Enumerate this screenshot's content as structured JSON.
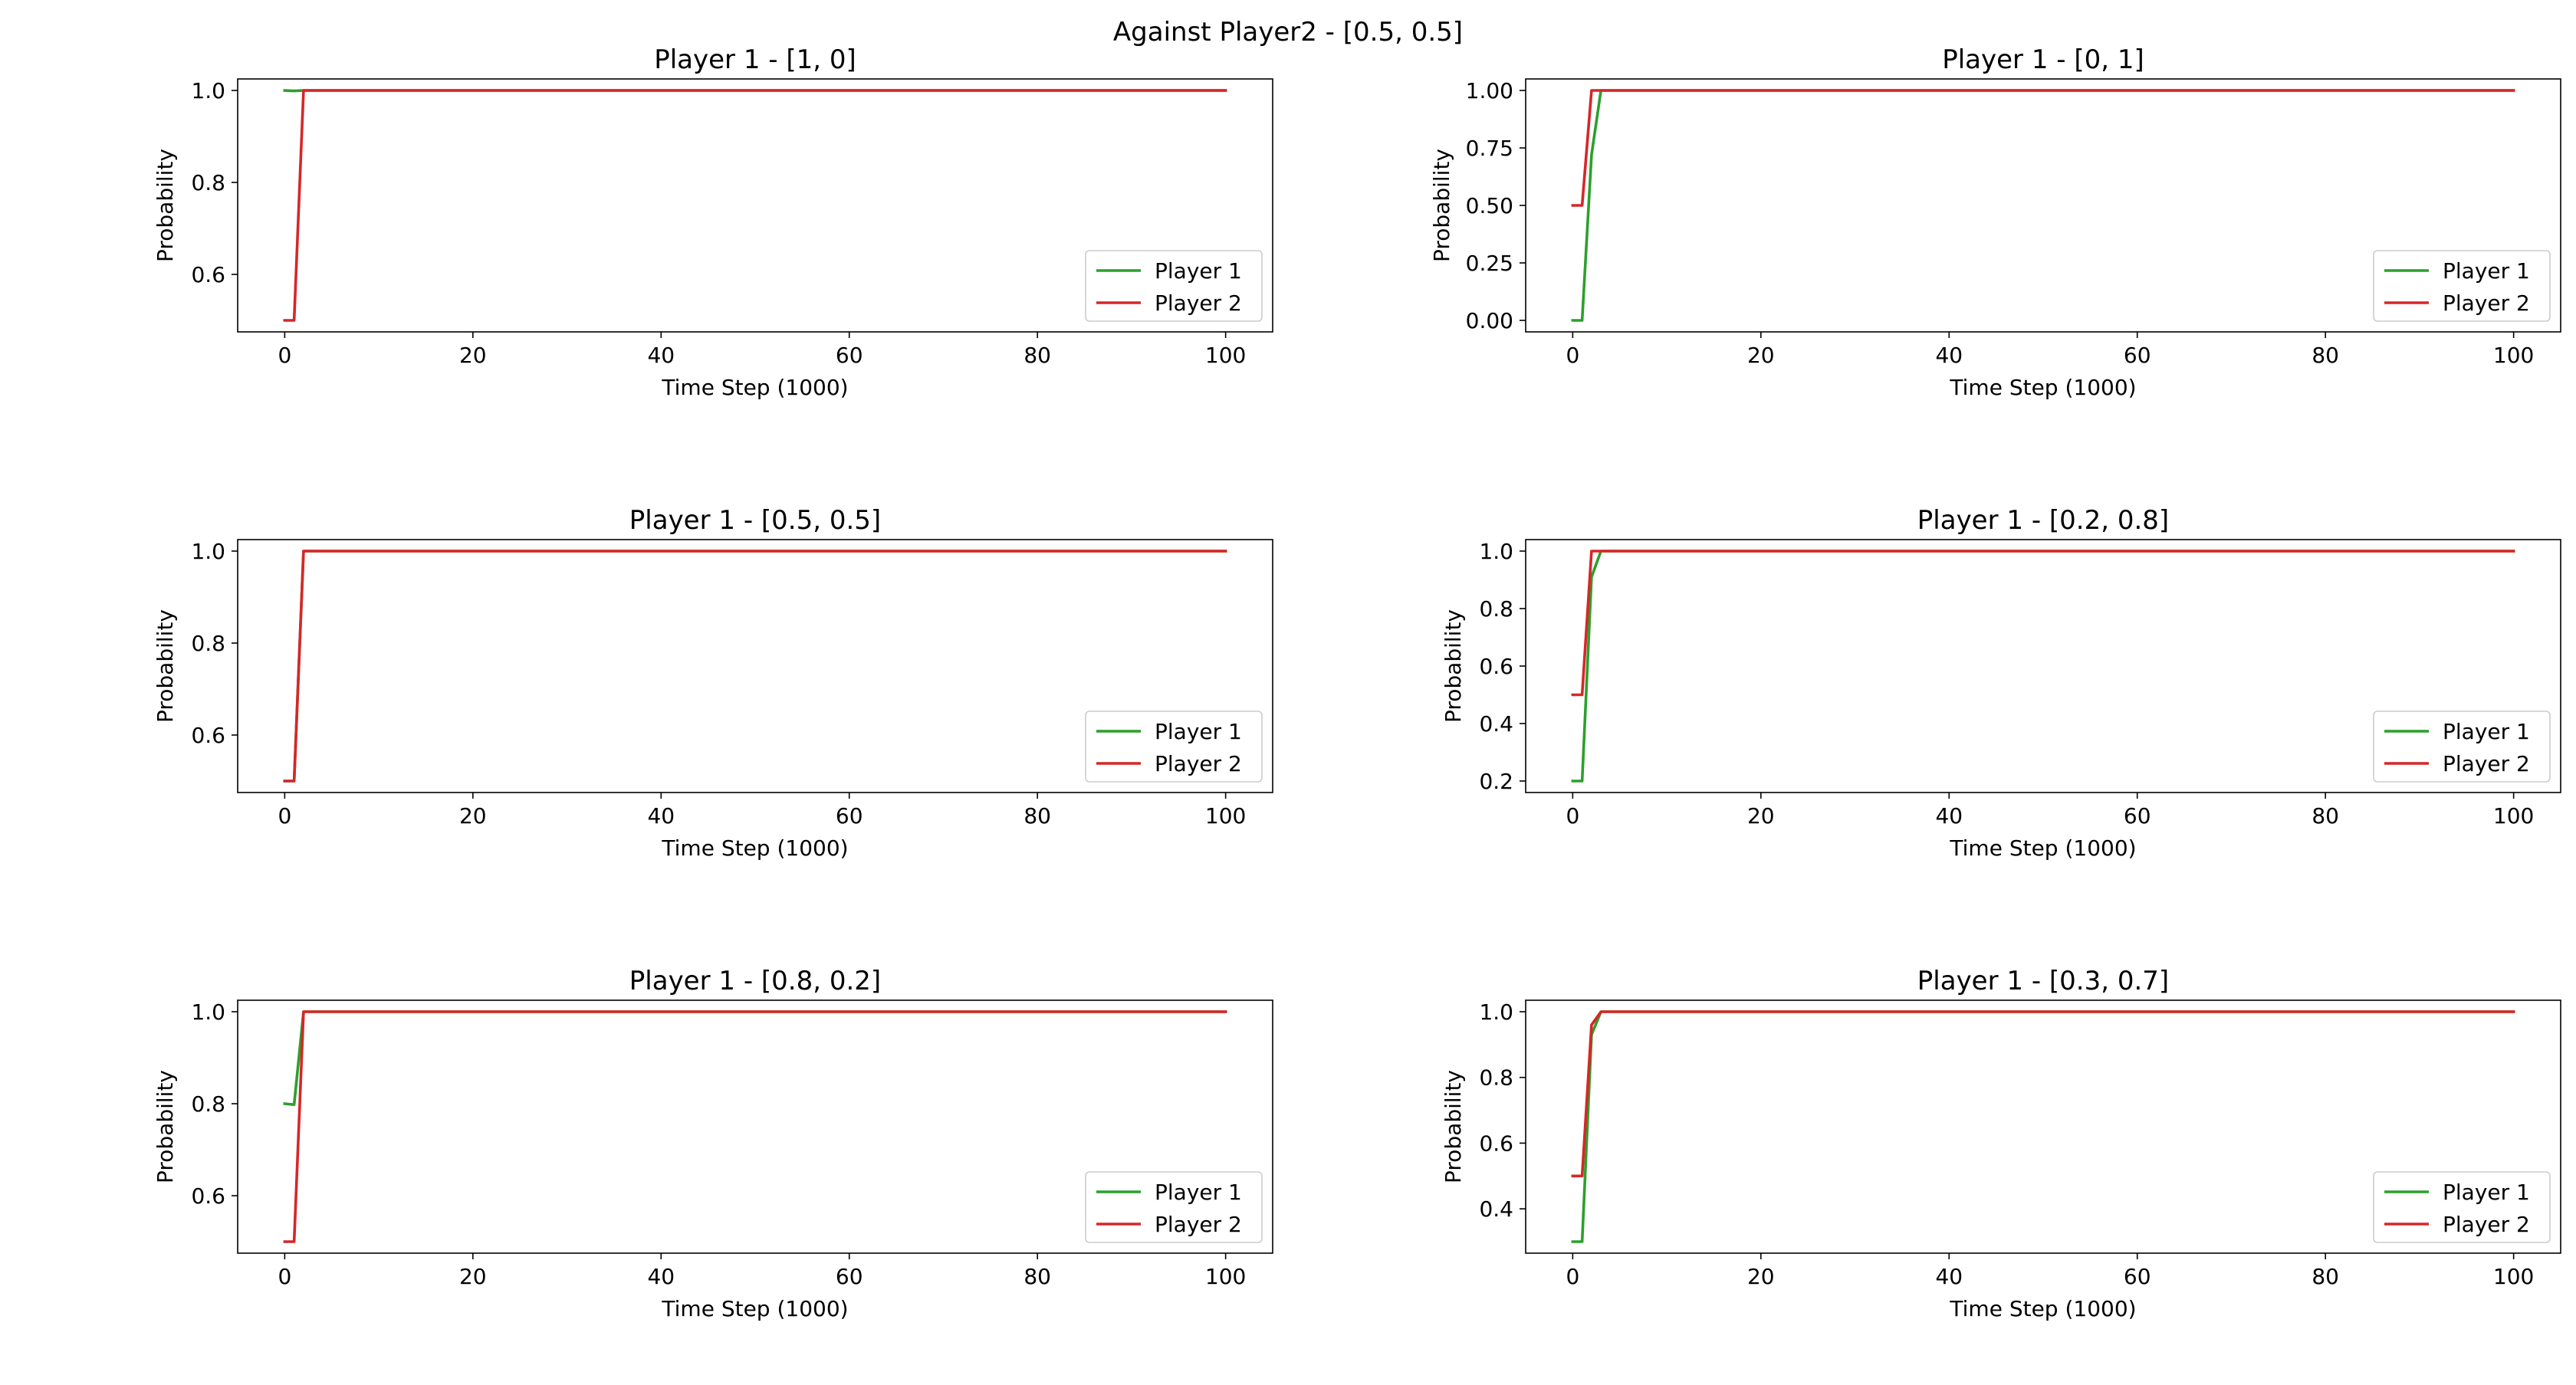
{
  "figure": {
    "suptitle": "Against Player2 - [0.5, 0.5]"
  },
  "chart_data": [
    {
      "type": "line",
      "title": "Player 1 - [1, 0]",
      "xlabel": "Time Step (1000)",
      "ylabel": "Probability",
      "xlim": [
        -5,
        105
      ],
      "ylim": [
        0.475,
        1.025
      ],
      "xticks": [
        0,
        20,
        40,
        60,
        80,
        100
      ],
      "yticks": [
        0.6,
        0.8,
        1.0
      ],
      "ytick_labels": [
        "0.6",
        "0.8",
        "1.0"
      ],
      "grid": false,
      "legend": "lower-right",
      "series": [
        {
          "name": "Player 1",
          "color": "#2ca02c",
          "x": [
            0,
            1,
            2,
            3,
            100
          ],
          "y": [
            1.0,
            0.999,
            1.0,
            1.0,
            1.0
          ]
        },
        {
          "name": "Player 2",
          "color": "#d62728",
          "x": [
            0,
            1,
            2,
            3,
            100
          ],
          "y": [
            0.5,
            0.5,
            1.0,
            1.0,
            1.0
          ]
        }
      ]
    },
    {
      "type": "line",
      "title": "Player 1 - [0, 1]",
      "xlabel": "Time Step (1000)",
      "ylabel": "Probability",
      "xlim": [
        -5,
        105
      ],
      "ylim": [
        -0.05,
        1.05
      ],
      "xticks": [
        0,
        20,
        40,
        60,
        80,
        100
      ],
      "yticks": [
        0.0,
        0.25,
        0.5,
        0.75,
        1.0
      ],
      "ytick_labels": [
        "0.00",
        "0.25",
        "0.50",
        "0.75",
        "1.00"
      ],
      "grid": false,
      "legend": "lower-right",
      "series": [
        {
          "name": "Player 1",
          "color": "#2ca02c",
          "x": [
            0,
            1,
            2,
            3,
            100
          ],
          "y": [
            0.0,
            0.0,
            0.72,
            1.0,
            1.0
          ]
        },
        {
          "name": "Player 2",
          "color": "#d62728",
          "x": [
            0,
            1,
            2,
            3,
            100
          ],
          "y": [
            0.5,
            0.5,
            1.0,
            1.0,
            1.0
          ]
        }
      ]
    },
    {
      "type": "line",
      "title": "Player 1 - [0.5, 0.5]",
      "xlabel": "Time Step (1000)",
      "ylabel": "Probability",
      "xlim": [
        -5,
        105
      ],
      "ylim": [
        0.475,
        1.025
      ],
      "xticks": [
        0,
        20,
        40,
        60,
        80,
        100
      ],
      "yticks": [
        0.6,
        0.8,
        1.0
      ],
      "ytick_labels": [
        "0.6",
        "0.8",
        "1.0"
      ],
      "grid": false,
      "legend": "lower-right",
      "series": [
        {
          "name": "Player 1",
          "color": "#2ca02c",
          "x": [
            0,
            1,
            2,
            3,
            100
          ],
          "y": [
            0.5,
            0.5,
            1.0,
            1.0,
            1.0
          ]
        },
        {
          "name": "Player 2",
          "color": "#d62728",
          "x": [
            0,
            1,
            2,
            3,
            100
          ],
          "y": [
            0.5,
            0.5,
            1.0,
            1.0,
            1.0
          ]
        }
      ]
    },
    {
      "type": "line",
      "title": "Player 1 - [0.2, 0.8]",
      "xlabel": "Time Step (1000)",
      "ylabel": "Probability",
      "xlim": [
        -5,
        105
      ],
      "ylim": [
        0.16,
        1.04
      ],
      "xticks": [
        0,
        20,
        40,
        60,
        80,
        100
      ],
      "yticks": [
        0.2,
        0.4,
        0.6,
        0.8,
        1.0
      ],
      "ytick_labels": [
        "0.2",
        "0.4",
        "0.6",
        "0.8",
        "1.0"
      ],
      "grid": false,
      "legend": "lower-right",
      "series": [
        {
          "name": "Player 1",
          "color": "#2ca02c",
          "x": [
            0,
            1,
            2,
            3,
            100
          ],
          "y": [
            0.2,
            0.2,
            0.91,
            1.0,
            1.0
          ]
        },
        {
          "name": "Player 2",
          "color": "#d62728",
          "x": [
            0,
            1,
            2,
            3,
            100
          ],
          "y": [
            0.5,
            0.5,
            1.0,
            1.0,
            1.0
          ]
        }
      ]
    },
    {
      "type": "line",
      "title": "Player 1 - [0.8, 0.2]",
      "xlabel": "Time Step (1000)",
      "ylabel": "Probability",
      "xlim": [
        -5,
        105
      ],
      "ylim": [
        0.475,
        1.025
      ],
      "xticks": [
        0,
        20,
        40,
        60,
        80,
        100
      ],
      "yticks": [
        0.6,
        0.8,
        1.0
      ],
      "ytick_labels": [
        "0.6",
        "0.8",
        "1.0"
      ],
      "grid": false,
      "legend": "lower-right",
      "series": [
        {
          "name": "Player 1",
          "color": "#2ca02c",
          "x": [
            0,
            1,
            2,
            3,
            100
          ],
          "y": [
            0.8,
            0.798,
            1.0,
            1.0,
            1.0
          ]
        },
        {
          "name": "Player 2",
          "color": "#d62728",
          "x": [
            0,
            1,
            2,
            3,
            100
          ],
          "y": [
            0.5,
            0.5,
            1.0,
            1.0,
            1.0
          ]
        }
      ]
    },
    {
      "type": "line",
      "title": "Player 1 - [0.3, 0.7]",
      "xlabel": "Time Step (1000)",
      "ylabel": "Probability",
      "xlim": [
        -5,
        105
      ],
      "ylim": [
        0.265,
        1.035
      ],
      "xticks": [
        0,
        20,
        40,
        60,
        80,
        100
      ],
      "yticks": [
        0.4,
        0.6,
        0.8,
        1.0
      ],
      "ytick_labels": [
        "0.4",
        "0.6",
        "0.8",
        "1.0"
      ],
      "grid": false,
      "legend": "lower-right",
      "series": [
        {
          "name": "Player 1",
          "color": "#2ca02c",
          "x": [
            0,
            1,
            2,
            3,
            100
          ],
          "y": [
            0.3,
            0.3,
            0.93,
            1.0,
            1.0
          ]
        },
        {
          "name": "Player 2",
          "color": "#d62728",
          "x": [
            0,
            1,
            2,
            3,
            100
          ],
          "y": [
            0.5,
            0.5,
            0.96,
            1.0,
            1.0
          ]
        }
      ]
    }
  ]
}
